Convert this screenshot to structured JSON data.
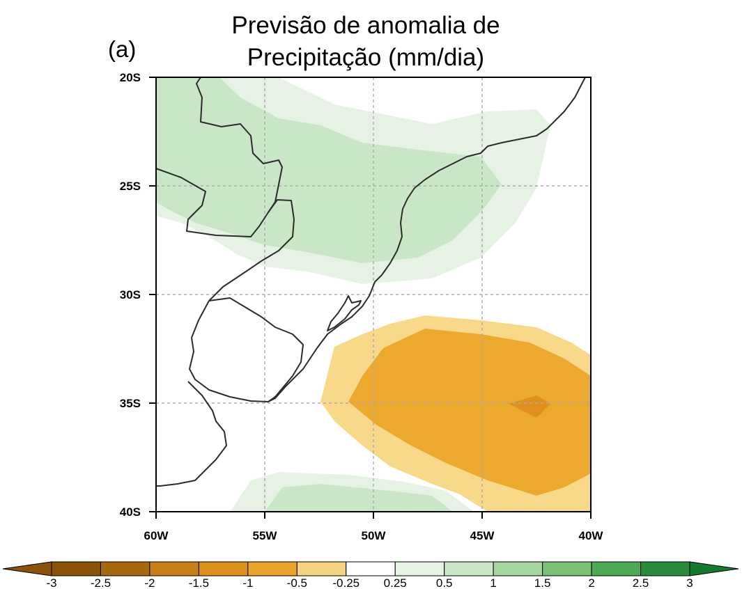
{
  "title_line1": "Previsão de anomalia de",
  "title_line2": "Precipitação (mm/dia)",
  "panel_label": "(a)",
  "lat_labels": [
    "20S",
    "25S",
    "30S",
    "35S",
    "40S"
  ],
  "lon_labels": [
    "60W",
    "55W",
    "50W",
    "45W",
    "40W"
  ],
  "colorbar": {
    "labels": [
      "-3",
      "-2.5",
      "-2",
      "-1.5",
      "-1",
      "-0.5",
      "-0.25",
      "0.25",
      "0.5",
      "1",
      "1.5",
      "2",
      "2.5",
      "3"
    ],
    "colors": [
      "#8a5206",
      "#a8680e",
      "#c77f16",
      "#dc8f1c",
      "#eba42c",
      "#f6d47f",
      "#ffffff",
      "#e6f3e4",
      "#c9e7c6",
      "#a5d6a0",
      "#79c175",
      "#4ea854",
      "#2a8c3a",
      "#147a2e"
    ]
  },
  "shading_colors": {
    "light_green": "#e6f3e4",
    "green": "#c9e7c6",
    "light_orange": "#f8d98a",
    "orange": "#eda82e",
    "dark_orange": "#e0901e"
  },
  "map_extent": {
    "lon": [
      -60,
      -40
    ],
    "lat": [
      -40,
      -20
    ]
  }
}
